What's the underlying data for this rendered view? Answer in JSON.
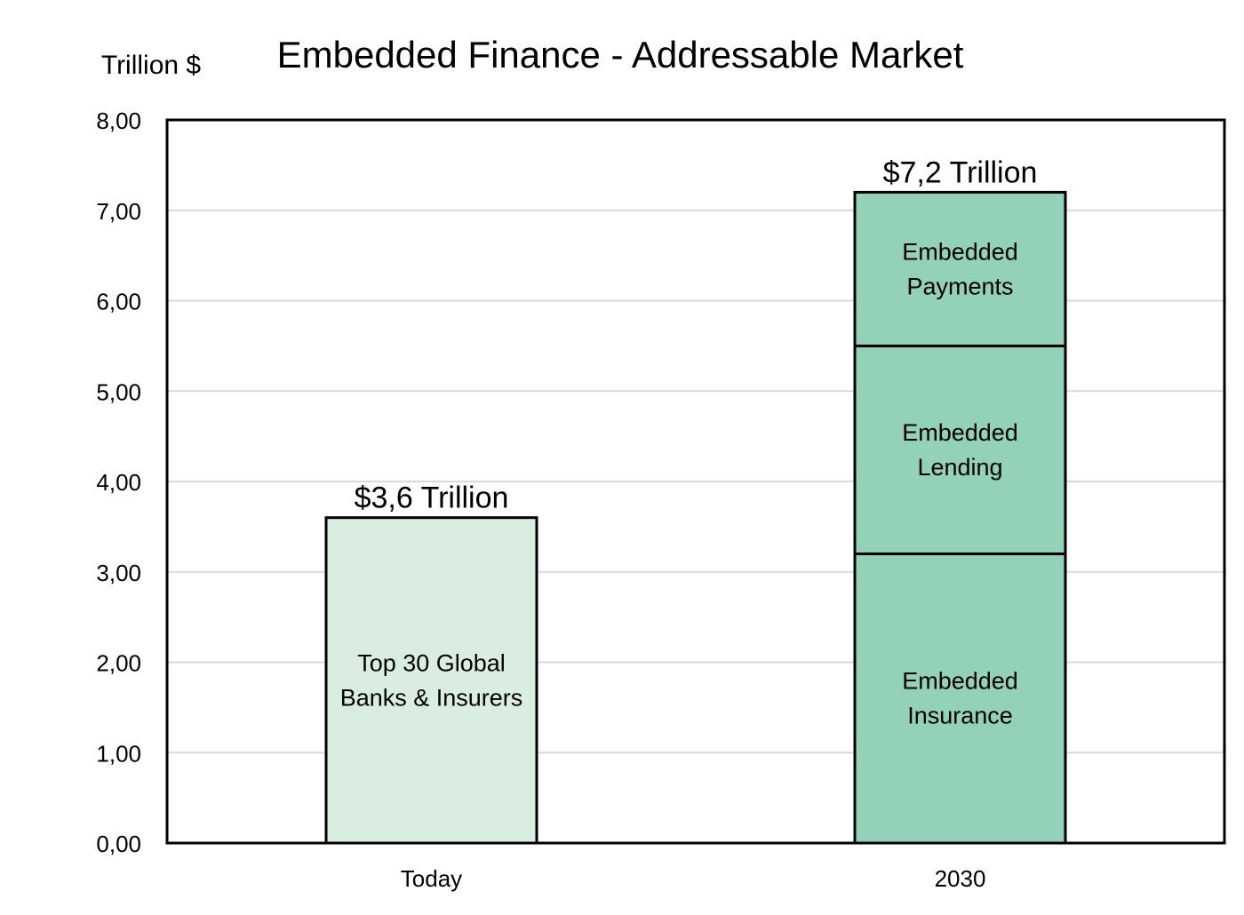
{
  "chart_data": {
    "type": "bar",
    "stacked": true,
    "title": "Embedded Finance - Addressable Market",
    "ylabel": "Trillion $",
    "xlabel": "",
    "ylim": [
      0,
      8
    ],
    "yticks": [
      "0,00",
      "1,00",
      "2,00",
      "3,00",
      "4,00",
      "5,00",
      "6,00",
      "7,00",
      "8,00"
    ],
    "categories": [
      "Today",
      "2030"
    ],
    "grid": "horizontal",
    "legend": "none",
    "bars": [
      {
        "category": "Today",
        "total_label": "$3,6 Trillion",
        "segments": [
          {
            "label": [
              "Top 30 Global",
              "Banks & Insurers"
            ],
            "value": 3.6,
            "color": "#d9ede0"
          }
        ]
      },
      {
        "category": "2030",
        "total_label": "$7,2 Trillion",
        "segments": [
          {
            "label": [
              "Embedded",
              "Insurance"
            ],
            "value": 3.2,
            "color": "#93d1b8"
          },
          {
            "label": [
              "Embedded",
              "Lending"
            ],
            "value": 2.3,
            "color": "#93d1b8"
          },
          {
            "label": [
              "Embedded",
              "Payments"
            ],
            "value": 1.7,
            "color": "#93d1b8"
          }
        ]
      }
    ],
    "colors": {
      "grid": "#d9d9d9",
      "axis": "#000000",
      "bar_edge": "#000000"
    }
  }
}
